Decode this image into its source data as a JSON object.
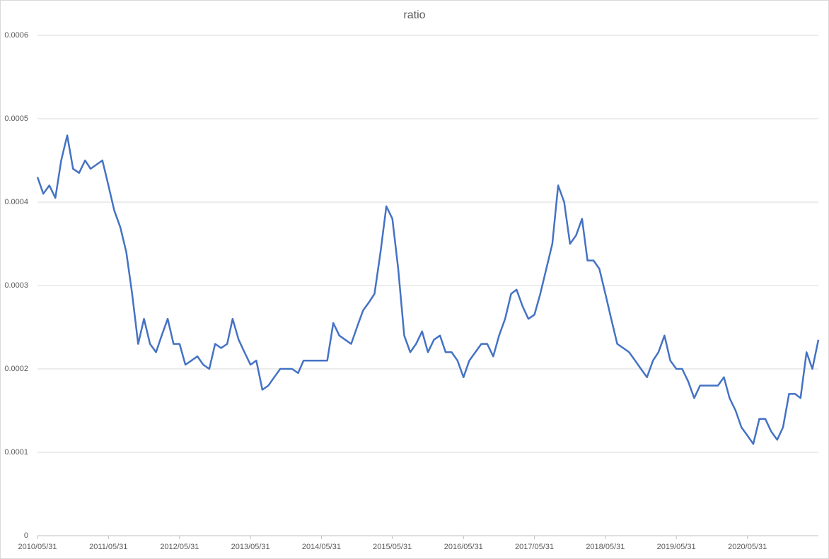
{
  "chart_data": {
    "type": "line",
    "title": "ratio",
    "x": [
      "2010/05/31",
      "2010/06/30",
      "2010/07/31",
      "2010/08/31",
      "2010/09/30",
      "2010/10/31",
      "2010/11/30",
      "2010/12/31",
      "2011/01/31",
      "2011/02/28",
      "2011/03/31",
      "2011/04/30",
      "2011/05/31",
      "2011/06/30",
      "2011/07/31",
      "2011/08/31",
      "2011/09/30",
      "2011/10/31",
      "2011/11/30",
      "2011/12/31",
      "2012/01/31",
      "2012/02/29",
      "2012/03/31",
      "2012/04/30",
      "2012/05/31",
      "2012/06/30",
      "2012/07/31",
      "2012/08/31",
      "2012/09/30",
      "2012/10/31",
      "2012/11/30",
      "2012/12/31",
      "2013/01/31",
      "2013/02/28",
      "2013/03/31",
      "2013/04/30",
      "2013/05/31",
      "2013/06/30",
      "2013/07/31",
      "2013/08/31",
      "2013/09/30",
      "2013/10/31",
      "2013/11/30",
      "2013/12/31",
      "2014/01/31",
      "2014/02/28",
      "2014/03/31",
      "2014/04/30",
      "2014/05/31",
      "2014/06/30",
      "2014/07/31",
      "2014/08/31",
      "2014/09/30",
      "2014/10/31",
      "2014/11/30",
      "2014/12/31",
      "2015/01/31",
      "2015/02/28",
      "2015/03/31",
      "2015/04/30",
      "2015/05/31",
      "2015/06/30",
      "2015/07/31",
      "2015/08/31",
      "2015/09/30",
      "2015/10/31",
      "2015/11/30",
      "2015/12/31",
      "2016/01/31",
      "2016/02/29",
      "2016/03/31",
      "2016/04/30",
      "2016/05/31",
      "2016/06/30",
      "2016/07/31",
      "2016/08/31",
      "2016/09/30",
      "2016/10/31",
      "2016/11/30",
      "2016/12/31",
      "2017/01/31",
      "2017/02/28",
      "2017/03/31",
      "2017/04/30",
      "2017/05/31",
      "2017/06/30",
      "2017/07/31",
      "2017/08/31",
      "2017/09/30",
      "2017/10/31",
      "2017/11/30",
      "2017/12/31",
      "2018/01/31",
      "2018/02/28",
      "2018/03/31",
      "2018/04/30",
      "2018/05/31",
      "2018/06/30",
      "2018/07/31",
      "2018/08/31",
      "2018/09/30",
      "2018/10/31",
      "2018/11/30",
      "2018/12/31",
      "2019/01/31",
      "2019/02/28",
      "2019/03/31",
      "2019/04/30",
      "2019/05/31",
      "2019/06/30",
      "2019/07/31",
      "2019/08/31",
      "2019/09/30",
      "2019/10/31",
      "2019/11/30",
      "2019/12/31",
      "2020/01/31",
      "2020/02/29",
      "2020/03/31",
      "2020/04/30",
      "2020/05/31",
      "2020/06/30",
      "2020/07/31",
      "2020/08/31",
      "2020/09/30",
      "2020/10/31",
      "2020/11/30",
      "2020/12/31",
      "2021/01/31",
      "2021/02/28",
      "2021/03/31",
      "2021/04/30",
      "2021/05/31"
    ],
    "series": [
      {
        "name": "ratio",
        "color": "#4472c4",
        "values": [
          0.00043,
          0.00041,
          0.00042,
          0.000405,
          0.00045,
          0.00048,
          0.00044,
          0.000435,
          0.00045,
          0.00044,
          0.000445,
          0.00045,
          0.00042,
          0.00039,
          0.00037,
          0.00034,
          0.00029,
          0.00023,
          0.00026,
          0.00023,
          0.00022,
          0.00024,
          0.00026,
          0.00023,
          0.00023,
          0.000205,
          0.00021,
          0.000215,
          0.000205,
          0.0002,
          0.00023,
          0.000225,
          0.00023,
          0.00026,
          0.000235,
          0.00022,
          0.000205,
          0.00021,
          0.000175,
          0.00018,
          0.00019,
          0.0002,
          0.0002,
          0.0002,
          0.000195,
          0.00021,
          0.00021,
          0.00021,
          0.00021,
          0.00021,
          0.000255,
          0.00024,
          0.000235,
          0.00023,
          0.00025,
          0.00027,
          0.00028,
          0.00029,
          0.00034,
          0.000395,
          0.00038,
          0.00032,
          0.00024,
          0.00022,
          0.00023,
          0.000245,
          0.00022,
          0.000235,
          0.00024,
          0.00022,
          0.00022,
          0.00021,
          0.00019,
          0.00021,
          0.00022,
          0.00023,
          0.00023,
          0.000215,
          0.00024,
          0.00026,
          0.00029,
          0.000295,
          0.000275,
          0.00026,
          0.000265,
          0.00029,
          0.00032,
          0.00035,
          0.00042,
          0.0004,
          0.00035,
          0.00036,
          0.00038,
          0.00033,
          0.00033,
          0.00032,
          0.00029,
          0.00026,
          0.00023,
          0.000225,
          0.00022,
          0.00021,
          0.0002,
          0.00019,
          0.00021,
          0.00022,
          0.00024,
          0.00021,
          0.0002,
          0.0002,
          0.000185,
          0.000165,
          0.00018,
          0.00018,
          0.00018,
          0.00018,
          0.00019,
          0.000165,
          0.00015,
          0.00013,
          0.00012,
          0.00011,
          0.00014,
          0.00014,
          0.000125,
          0.000115,
          0.00013,
          0.00017,
          0.00017,
          0.000165,
          0.00022,
          0.0002,
          0.000235
        ]
      }
    ],
    "xlim": [
      "2010/05/31",
      "2021/05/31"
    ],
    "xticks": [
      "2010/05/31",
      "2011/05/31",
      "2012/05/31",
      "2013/05/31",
      "2014/05/31",
      "2015/05/31",
      "2016/05/31",
      "2017/05/31",
      "2018/05/31",
      "2019/05/31",
      "2020/05/31"
    ],
    "ylim": [
      0,
      0.0006
    ],
    "yticks": [
      0,
      0.0001,
      0.0002,
      0.0003,
      0.0004,
      0.0005,
      0.0006
    ],
    "grid": true
  }
}
